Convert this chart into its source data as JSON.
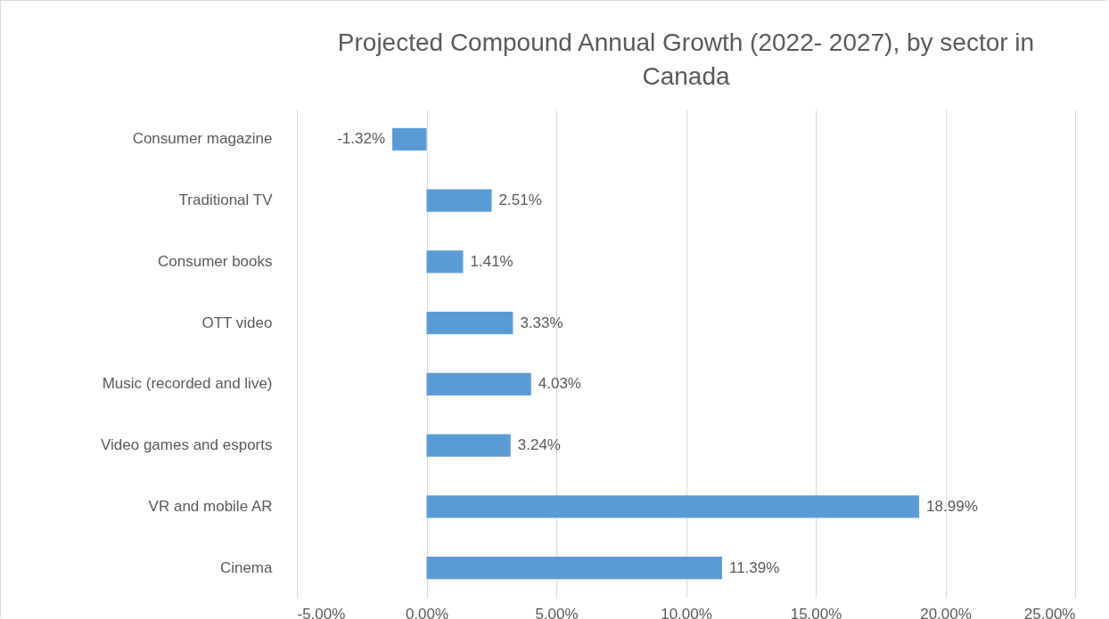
{
  "chart_data": {
    "type": "bar",
    "orientation": "horizontal",
    "title": "Projected Compound Annual Growth (2022- 2027), by sector in Canada",
    "categories": [
      "Consumer magazine",
      "Traditional TV",
      "Consumer books",
      "OTT video",
      "Music (recorded and live)",
      "Video games and esports",
      "VR and mobile AR",
      "Cinema"
    ],
    "values": [
      -1.32,
      2.51,
      1.41,
      3.33,
      4.03,
      3.24,
      18.99,
      11.39
    ],
    "value_labels": [
      "-1.32%",
      "2.51%",
      "1.41%",
      "3.33%",
      "4.03%",
      "3.24%",
      "18.99%",
      "11.39%"
    ],
    "color": "#5b9bd5",
    "xlim": [
      -5,
      25
    ],
    "xticks": [
      {
        "value": -5,
        "label": "-5.00%"
      },
      {
        "value": 0,
        "label": "0.00%"
      },
      {
        "value": 5,
        "label": "5.00%"
      },
      {
        "value": 10,
        "label": "10.00%"
      },
      {
        "value": 15,
        "label": "15.00%"
      },
      {
        "value": 20,
        "label": "20.00%"
      },
      {
        "value": 25,
        "label": "25.00%"
      }
    ],
    "grid": "x"
  }
}
